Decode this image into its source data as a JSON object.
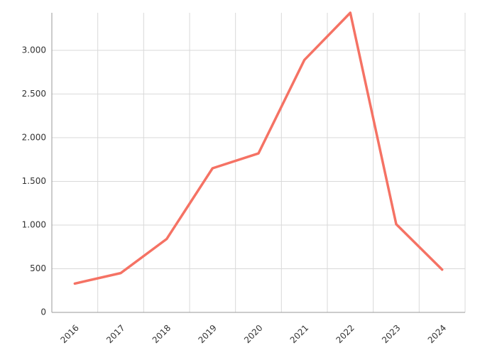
{
  "chart_data": {
    "type": "line",
    "categories": [
      "2016",
      "2017",
      "2018",
      "2019",
      "2020",
      "2021",
      "2022",
      "2023",
      "2024"
    ],
    "values": [
      330,
      450,
      840,
      1650,
      1820,
      2890,
      3430,
      1010,
      490
    ],
    "color": "#f57264",
    "ylim": [
      0,
      3430
    ],
    "yticks": [
      0,
      500,
      {
        "value": 1000,
        "label": "1.000"
      },
      {
        "value": 1500,
        "label": "1.500"
      },
      {
        "value": 2000,
        "label": "2.000"
      },
      {
        "value": 2500,
        "label": "2.500"
      },
      {
        "value": 3000,
        "label": "3.000"
      }
    ],
    "grid": true
  }
}
